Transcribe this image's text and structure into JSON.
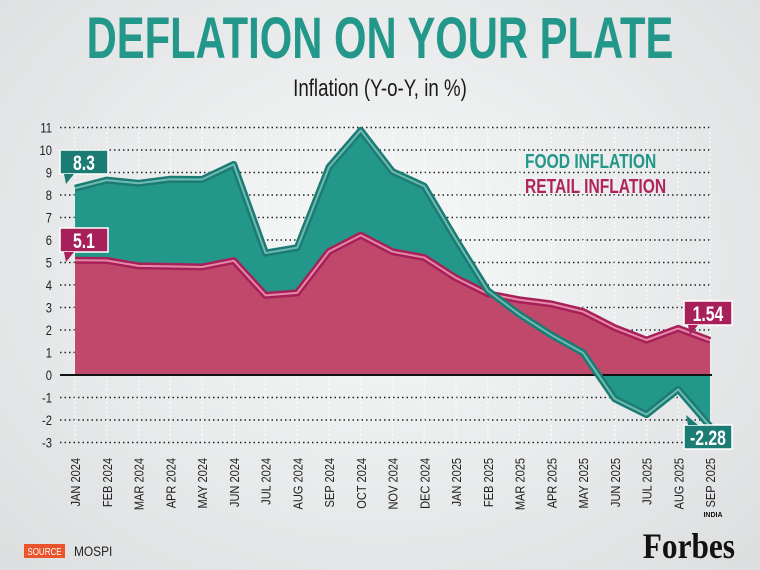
{
  "header": {
    "title": "DEFLATION ON YOUR PLATE",
    "subtitle": "Inflation (Y-o-Y, in %)"
  },
  "footer": {
    "source_label": "SOURCE",
    "source": "MOSPI",
    "logo": "Forbes",
    "logo_super": "INDIA"
  },
  "colors": {
    "title": "#22978a",
    "food": "#23978a",
    "retail": "#c0486b",
    "food_line": "#1b7c73",
    "retail_line": "#a8205a",
    "source_badge": "#e9542b"
  },
  "chart_data": {
    "type": "area",
    "title": "DEFLATION ON YOUR PLATE",
    "subtitle": "Inflation (Y-o-Y, in %)",
    "ylim": [
      -3,
      11
    ],
    "yticks": [
      -3,
      -2,
      -1,
      0,
      1,
      2,
      3,
      4,
      5,
      6,
      7,
      8,
      9,
      10,
      11
    ],
    "grid": true,
    "legend_placement": "top-right",
    "categories": [
      "JAN 2024",
      "FEB 2024",
      "MAR 2024",
      "APR 2024",
      "MAY 2024",
      "JUN 2024",
      "JUL 2024",
      "AUG 2024",
      "SEP 2024",
      "OCT 2024",
      "NOV 2024",
      "DEC 2024",
      "JAN 2025",
      "FEB 2025",
      "MAR 2025",
      "APR 2025",
      "MAY 2025",
      "JUN 2025",
      "JUL 2025",
      "AUG 2025",
      "SEP 2025"
    ],
    "series": [
      {
        "name": "FOOD INFLATION",
        "values": [
          8.3,
          8.66,
          8.52,
          8.7,
          8.69,
          9.36,
          5.42,
          5.66,
          9.24,
          10.87,
          9.04,
          8.39,
          6.02,
          3.75,
          2.69,
          1.78,
          0.99,
          -1.06,
          -1.76,
          -0.64,
          -2.28
        ]
      },
      {
        "name": "RETAIL INFLATION",
        "values": [
          5.1,
          5.09,
          4.85,
          4.83,
          4.8,
          5.08,
          3.54,
          3.65,
          5.49,
          6.21,
          5.48,
          5.22,
          4.31,
          3.61,
          3.34,
          3.16,
          2.82,
          2.1,
          1.55,
          2.07,
          1.54
        ]
      }
    ],
    "annotations": [
      {
        "series": "FOOD INFLATION",
        "category": "JAN 2024",
        "text": "8.3"
      },
      {
        "series": "RETAIL INFLATION",
        "category": "JAN 2024",
        "text": "5.1"
      },
      {
        "series": "RETAIL INFLATION",
        "category": "SEP 2025",
        "text": "1.54"
      },
      {
        "series": "FOOD INFLATION",
        "category": "SEP 2025",
        "text": "-2.28"
      }
    ]
  }
}
